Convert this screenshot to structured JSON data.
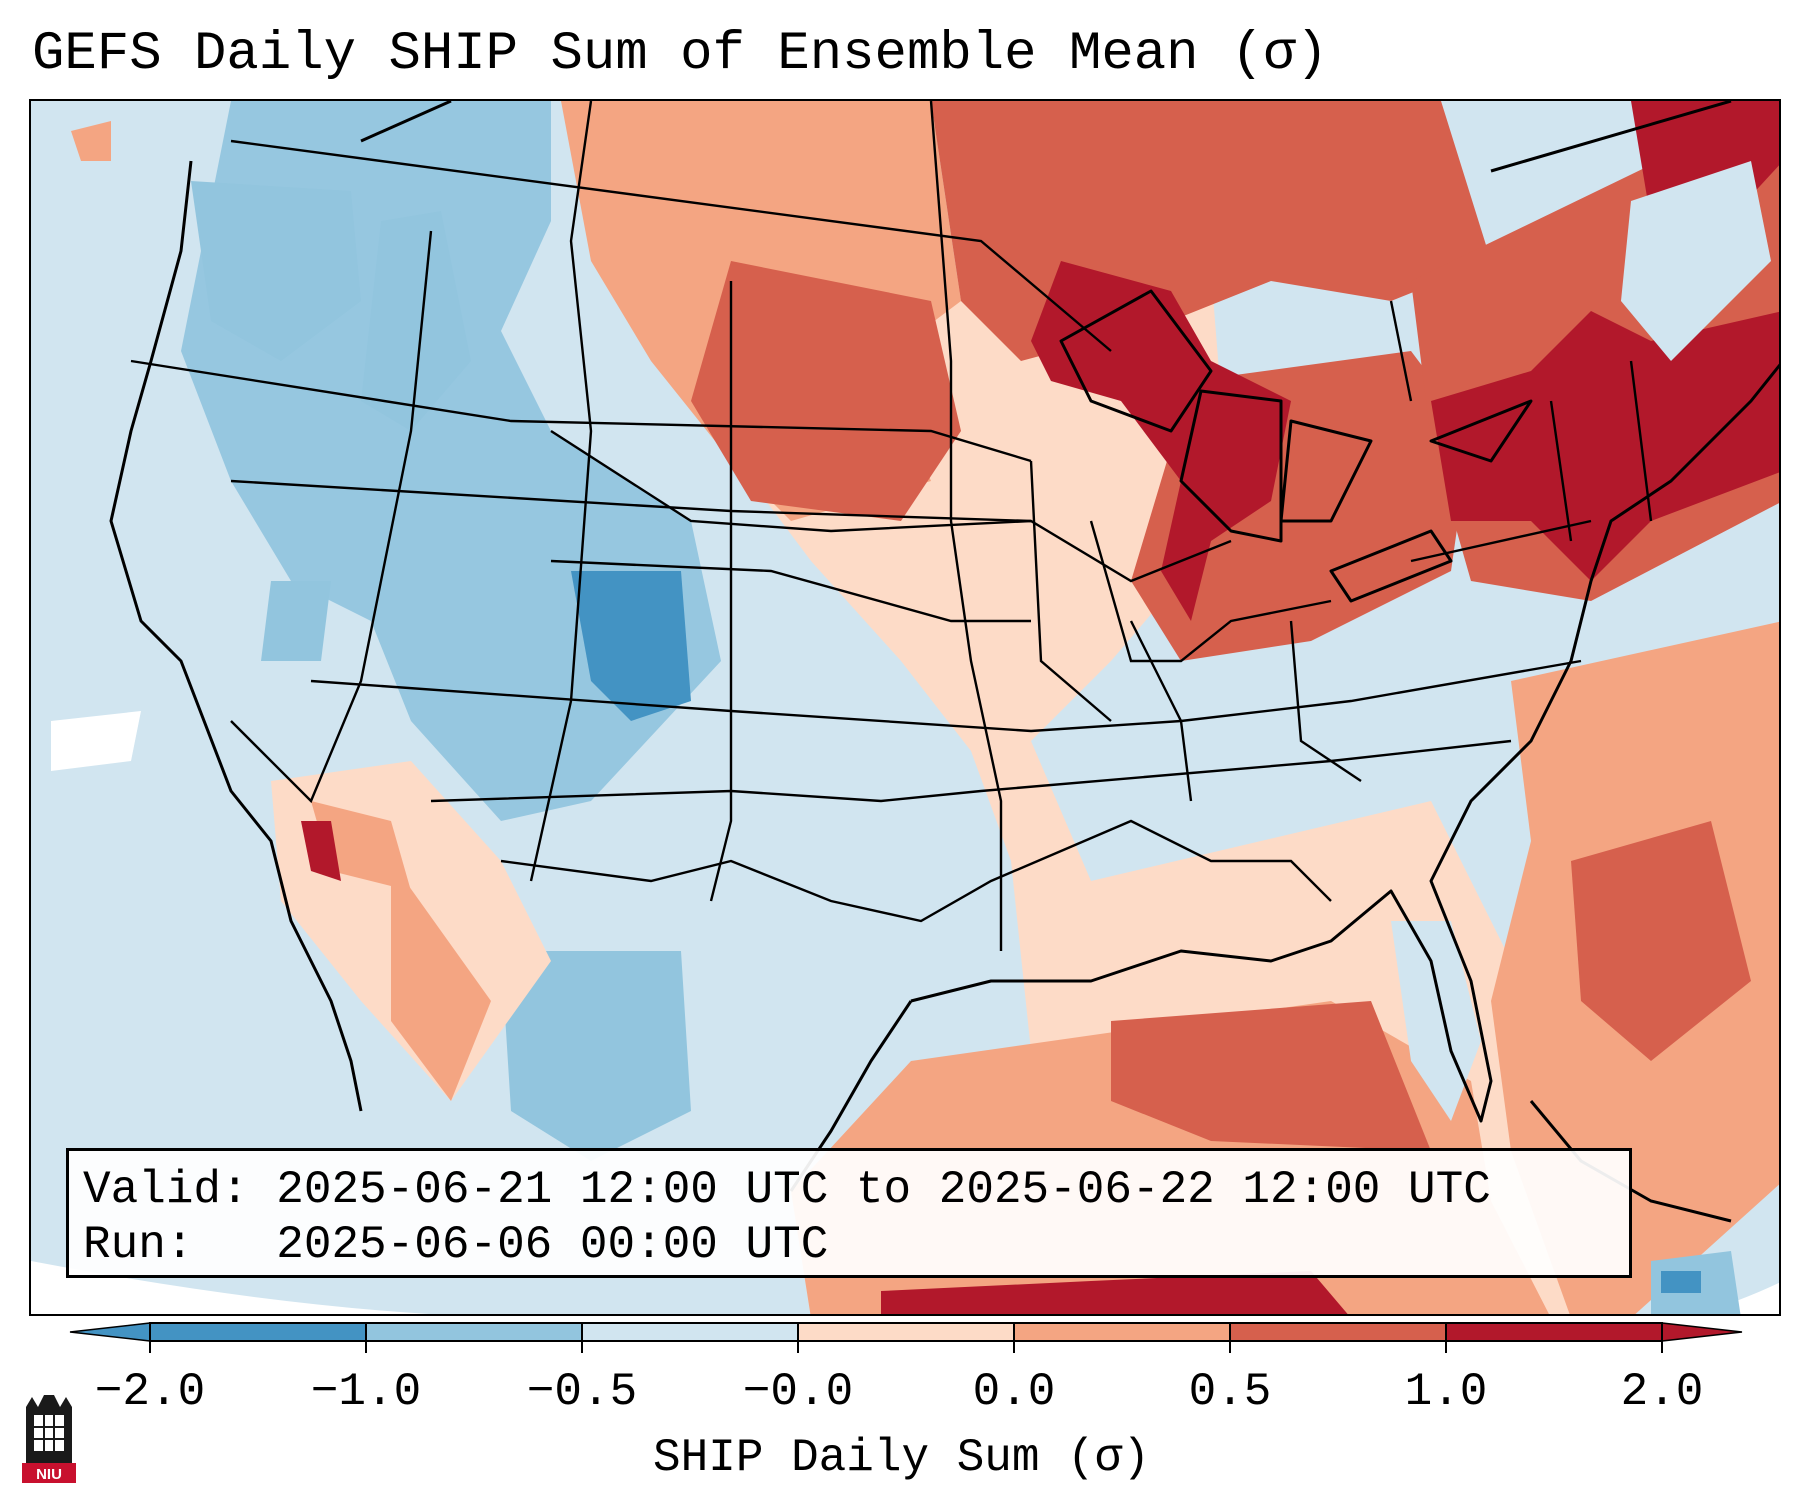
{
  "title": "GEFS Daily SHIP Sum of Ensemble Mean (σ)",
  "info": {
    "valid_line": "Valid: 2025-06-21 12:00 UTC to 2025-06-22 12:00 UTC",
    "run_line": "Run:   2025-06-06 00:00 UTC"
  },
  "colorbar": {
    "label": "SHIP Daily Sum (σ)",
    "ticks": [
      "−2.0",
      "−1.0",
      "−0.5",
      "−0.0",
      "0.0",
      "0.5",
      "1.0",
      "2.0"
    ],
    "colors": [
      "#4393c3",
      "#92c5de",
      "#d1e5f0",
      "#f7f7f7",
      "#fddbc7",
      "#f4a582",
      "#d6604d",
      "#b2182b"
    ],
    "extend": "both"
  },
  "logo": {
    "text": "NIU"
  },
  "map_regions": [
    {
      "name": "pacific-ocean",
      "value": -0.2
    },
    {
      "name": "pacific-northwest",
      "value": -0.5
    },
    {
      "name": "idaho-montana-west",
      "value": -0.7
    },
    {
      "name": "colorado-rockies",
      "value": -1.2
    },
    {
      "name": "utah-new-mexico",
      "value": -0.6
    },
    {
      "name": "southern-california-coast",
      "value": 1.0
    },
    {
      "name": "texas-mexico",
      "value": -0.5
    },
    {
      "name": "northern-plains",
      "value": 0.9
    },
    {
      "name": "central-plains-midwest",
      "value": 0.2
    },
    {
      "name": "great-lakes",
      "value": 1.6
    },
    {
      "name": "ohio-valley",
      "value": 0.7
    },
    {
      "name": "southeast",
      "value": 0.3
    },
    {
      "name": "northeast",
      "value": 1.5
    },
    {
      "name": "gulf-of-mexico",
      "value": 0.8
    },
    {
      "name": "caribbean",
      "value": 1.2
    },
    {
      "name": "atlantic",
      "value": 0.6
    },
    {
      "name": "florida-peninsula",
      "value": -0.3
    },
    {
      "name": "canada-prairies",
      "value": 0.8
    }
  ]
}
